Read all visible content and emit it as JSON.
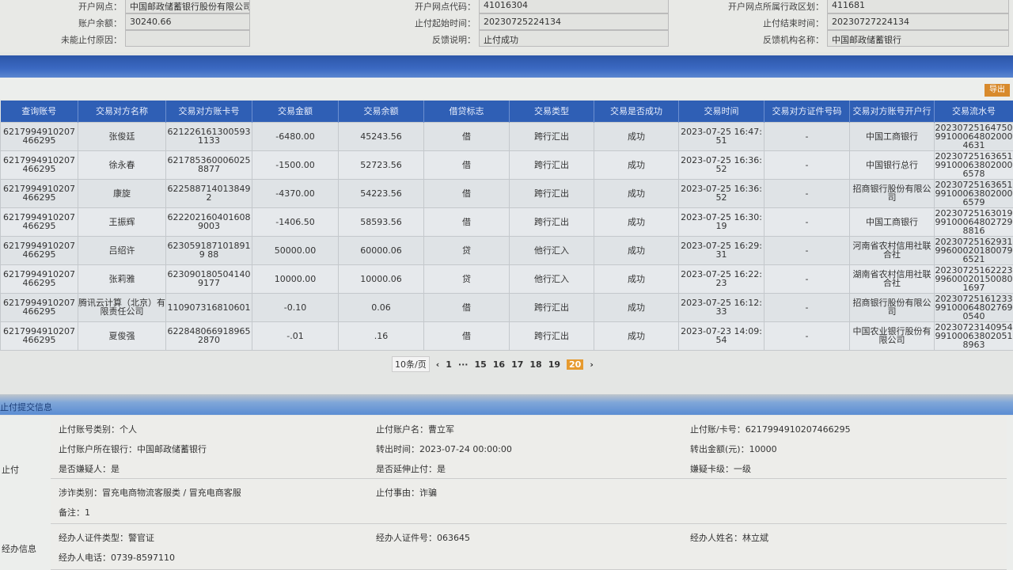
{
  "top_form": [
    {
      "label": "开户网点：",
      "value": "中国邮政储蓄银行股份有限公司项城市高寺..."
    },
    {
      "label": "开户网点代码：",
      "value": "41016304"
    },
    {
      "label": "开户网点所属行政区划：",
      "value": "411681"
    },
    {
      "label": "账户余额：",
      "value": "30240.66"
    },
    {
      "label": "止付起始时间：",
      "value": "20230725224134"
    },
    {
      "label": "止付结束时间：",
      "value": "20230727224134"
    },
    {
      "label": "未能止付原因：",
      "value": ""
    },
    {
      "label": "反馈说明：",
      "value": "止付成功"
    },
    {
      "label": "反馈机构名称：",
      "value": "中国邮政储蓄银行"
    }
  ],
  "toolbar": {
    "export_label": "导出"
  },
  "table": {
    "columns": [
      "查询账号",
      "交易对方名称",
      "交易对方账卡号",
      "交易金额",
      "交易余额",
      "借贷标志",
      "交易类型",
      "交易是否成功",
      "交易时间",
      "交易对方证件号码",
      "交易对方账号开户行",
      "交易流水号"
    ],
    "rows": [
      [
        "6217994910207466295",
        "张俊廷",
        "6212261613005931133",
        "-6480.00",
        "45243.56",
        "借",
        "跨行汇出",
        "成功",
        "2023-07-25 16:47:51",
        "-",
        "中国工商银行",
        "20230725164750991000648020004631"
      ],
      [
        "6217994910207466295",
        "徐永春",
        "6217853600060258877",
        "-1500.00",
        "52723.56",
        "借",
        "跨行汇出",
        "成功",
        "2023-07-25 16:36:52",
        "-",
        "中国银行总行",
        "20230725163651991000638020006578"
      ],
      [
        "6217994910207466295",
        "康旋",
        "622588714013849 2",
        "-4370.00",
        "54223.56",
        "借",
        "跨行汇出",
        "成功",
        "2023-07-25 16:36:52",
        "-",
        "招商银行股份有限公司",
        "20230725163651991000638020006579"
      ],
      [
        "6217994910207466295",
        "王振辉",
        "6222021604016089003",
        "-1406.50",
        "58593.56",
        "借",
        "跨行汇出",
        "成功",
        "2023-07-25 16:30:19",
        "-",
        "中国工商银行",
        "20230725163019991000648027298816"
      ],
      [
        "6217994910207466295",
        "吕绍许",
        "6230591871018919 88",
        "50000.00",
        "60000.06",
        "贷",
        "他行汇入",
        "成功",
        "2023-07-25 16:29:31",
        "-",
        "河南省农村信用社联合社",
        "20230725162931996000201800796521"
      ],
      [
        "6217994910207466295",
        "张莉雅",
        "6230901805041409177",
        "10000.00",
        "10000.06",
        "贷",
        "他行汇入",
        "成功",
        "2023-07-25 16:22:23",
        "-",
        "湖南省农村信用社联合社",
        "20230725162223996000201500801697"
      ],
      [
        "6217994910207466295",
        "腾讯云计算（北京）有限责任公司",
        "110907316810601",
        "-0.10",
        "0.06",
        "借",
        "跨行汇出",
        "成功",
        "2023-07-25 16:12:33",
        "-",
        "招商银行股份有限公司",
        "20230725161233991000648027690540"
      ],
      [
        "6217994910207466295",
        "夏俊强",
        "6228480669189652870",
        "-.01",
        ".16",
        "借",
        "跨行汇出",
        "成功",
        "2023-07-23 14:09:54",
        "-",
        "中国农业银行股份有限公司",
        "20230723140954991000638020518963"
      ]
    ]
  },
  "pager": {
    "page_size": "10条/页",
    "prev": "‹",
    "next": "›",
    "pages": [
      "1",
      "···",
      "15",
      "16",
      "17",
      "18",
      "19",
      "20"
    ],
    "current": "20"
  },
  "section_title": "止付提交信息",
  "stop_group": {
    "label": "止付",
    "items": [
      "止付账号类别：个人",
      "止付账户名：曹立军",
      "止付账/卡号：6217994910207466295",
      "止付账户所在银行：中国邮政储蓄银行",
      "转出时间：2023-07-24 00:00:00",
      "转出金额(元)：10000",
      "是否嫌疑人：是",
      "是否延伸止付：是",
      "嫌疑卡级：一级",
      "涉诈类别：冒充电商物流客服类 / 冒充电商客服",
      "止付事由：诈骗",
      "备注：1"
    ]
  },
  "handler_group": {
    "label": "经办信息",
    "items": [
      "经办人证件类型：警官证",
      "经办人证件号：063645",
      "经办人姓名：林立斌",
      "经办人电话：0739-8597110"
    ]
  }
}
